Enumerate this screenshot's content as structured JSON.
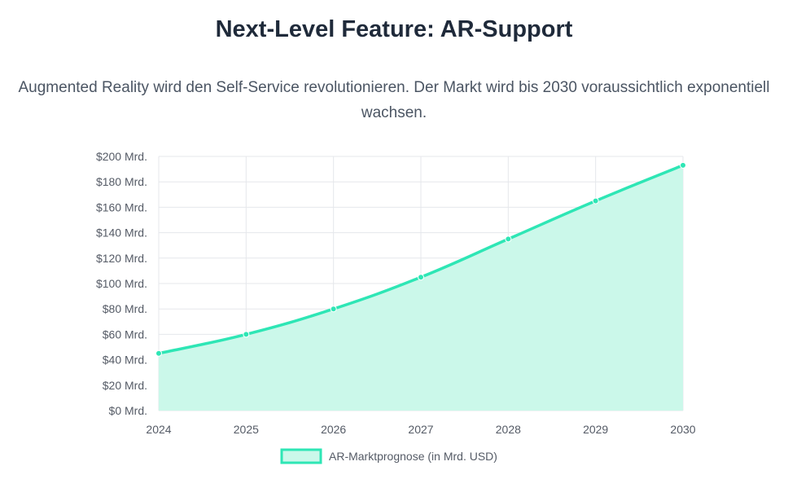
{
  "header": {
    "title": "Next-Level Feature: AR-Support",
    "subtitle": "Augmented Reality wird den Self-Service revolutionieren. Der Markt wird bis 2030 voraussichtlich exponentiell wachsen."
  },
  "colors": {
    "line": "#2ee6b5",
    "fill": "#cbf8ea",
    "grid": "#e5e7eb",
    "axis_text": "#555b66"
  },
  "chart_data": {
    "type": "area",
    "title": "",
    "xlabel": "",
    "ylabel": "",
    "categories": [
      "2024",
      "2025",
      "2026",
      "2027",
      "2028",
      "2029",
      "2030"
    ],
    "series": [
      {
        "name": "AR-Marktprognose (in Mrd. USD)",
        "values": [
          45,
          60,
          80,
          105,
          135,
          165,
          193
        ]
      }
    ],
    "ylim": [
      0,
      200
    ],
    "y_ticks": [
      0,
      20,
      40,
      60,
      80,
      100,
      120,
      140,
      160,
      180,
      200
    ],
    "y_tick_labels": [
      "$0 Mrd.",
      "$20 Mrd.",
      "$40 Mrd.",
      "$60 Mrd.",
      "$80 Mrd.",
      "$100 Mrd.",
      "$120 Mrd.",
      "$140 Mrd.",
      "$160 Mrd.",
      "$180 Mrd.",
      "$200 Mrd."
    ],
    "grid": true,
    "legend_position": "bottom-center"
  }
}
